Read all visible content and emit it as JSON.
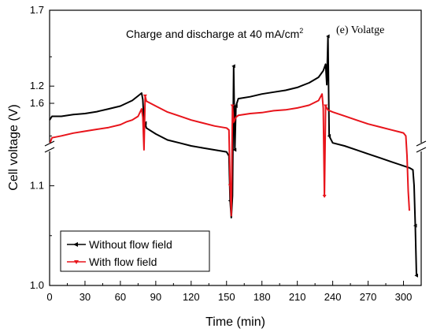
{
  "chart_data": {
    "type": "line",
    "annotation_main": "Charge and discharge at 40 mA/cm",
    "annotation_sup": "2",
    "annotation_tag": "(e) Volatge",
    "xlabel": "Time (min)",
    "ylabel": "Cell voltage (V)",
    "xlim": [
      0,
      315
    ],
    "x_ticks": [
      "0",
      "30",
      "60",
      "90",
      "120",
      "150",
      "180",
      "210",
      "240",
      "270",
      "300"
    ],
    "y_ticks_upper": [
      "1.6",
      "1.7"
    ],
    "y_ticks_lower": [
      "1.0",
      "1.1",
      "1.2"
    ],
    "y_axis_break": true,
    "y_segments": [
      [
        1.0,
        1.25
      ],
      [
        1.5,
        1.7
      ]
    ],
    "legend_position": "bottom-left",
    "series": [
      {
        "name": "Without flow field",
        "color": "#000000",
        "marker": "left-triangle",
        "points": [
          [
            0,
            1.582
          ],
          [
            2,
            1.586
          ],
          [
            10,
            1.586
          ],
          [
            20,
            1.588
          ],
          [
            30,
            1.589
          ],
          [
            40,
            1.591
          ],
          [
            50,
            1.594
          ],
          [
            60,
            1.597
          ],
          [
            65,
            1.6
          ],
          [
            70,
            1.603
          ],
          [
            75,
            1.608
          ],
          [
            78,
            1.611
          ],
          [
            79,
            1.604
          ],
          [
            80,
            1.58
          ],
          [
            81,
            1.163
          ],
          [
            82,
            1.158
          ],
          [
            90,
            1.152
          ],
          [
            100,
            1.146
          ],
          [
            110,
            1.143
          ],
          [
            120,
            1.14
          ],
          [
            130,
            1.138
          ],
          [
            140,
            1.136
          ],
          [
            150,
            1.134
          ],
          [
            152,
            1.13
          ],
          [
            153,
            1.085
          ],
          [
            154,
            1.068
          ],
          [
            155,
            1.09
          ],
          [
            156,
            1.22
          ],
          [
            157,
            1.55
          ],
          [
            158,
            1.597
          ],
          [
            160,
            1.605
          ],
          [
            170,
            1.607
          ],
          [
            180,
            1.61
          ],
          [
            190,
            1.612
          ],
          [
            200,
            1.614
          ],
          [
            210,
            1.617
          ],
          [
            220,
            1.622
          ],
          [
            228,
            1.628
          ],
          [
            232,
            1.635
          ],
          [
            234,
            1.642
          ],
          [
            235,
            1.62
          ],
          [
            236,
            1.25
          ],
          [
            237,
            1.15
          ],
          [
            240,
            1.143
          ],
          [
            250,
            1.14
          ],
          [
            260,
            1.136
          ],
          [
            270,
            1.132
          ],
          [
            280,
            1.128
          ],
          [
            290,
            1.124
          ],
          [
            300,
            1.12
          ],
          [
            305,
            1.118
          ],
          [
            308,
            1.116
          ],
          [
            309,
            1.1
          ],
          [
            310,
            1.06
          ],
          [
            311,
            1.01
          ]
        ]
      },
      {
        "name": "With flow field",
        "color": "#e8141b",
        "marker": "down-triangle",
        "points": [
          [
            0,
            1.556
          ],
          [
            2,
            1.563
          ],
          [
            10,
            1.565
          ],
          [
            20,
            1.568
          ],
          [
            30,
            1.57
          ],
          [
            40,
            1.572
          ],
          [
            50,
            1.574
          ],
          [
            60,
            1.577
          ],
          [
            65,
            1.58
          ],
          [
            70,
            1.582
          ],
          [
            75,
            1.586
          ],
          [
            78,
            1.594
          ],
          [
            79,
            1.585
          ],
          [
            80,
            1.55
          ],
          [
            81,
            1.19
          ],
          [
            82,
            1.185
          ],
          [
            90,
            1.18
          ],
          [
            100,
            1.174
          ],
          [
            110,
            1.17
          ],
          [
            120,
            1.166
          ],
          [
            130,
            1.163
          ],
          [
            140,
            1.16
          ],
          [
            150,
            1.158
          ],
          [
            152,
            1.156
          ],
          [
            153,
            1.1
          ],
          [
            154,
            1.07
          ],
          [
            155,
            1.18
          ],
          [
            156,
            1.58
          ],
          [
            158,
            1.585
          ],
          [
            160,
            1.587
          ],
          [
            170,
            1.589
          ],
          [
            180,
            1.59
          ],
          [
            190,
            1.592
          ],
          [
            200,
            1.593
          ],
          [
            210,
            1.595
          ],
          [
            220,
            1.598
          ],
          [
            228,
            1.603
          ],
          [
            231,
            1.61
          ],
          [
            232,
            1.595
          ],
          [
            233,
            1.5
          ],
          [
            234,
            1.18
          ],
          [
            236,
            1.176
          ],
          [
            240,
            1.174
          ],
          [
            250,
            1.17
          ],
          [
            260,
            1.166
          ],
          [
            270,
            1.162
          ],
          [
            280,
            1.159
          ],
          [
            290,
            1.156
          ],
          [
            300,
            1.153
          ],
          [
            302,
            1.15
          ],
          [
            303,
            1.13
          ],
          [
            304,
            1.095
          ],
          [
            305,
            1.075
          ]
        ]
      }
    ]
  }
}
